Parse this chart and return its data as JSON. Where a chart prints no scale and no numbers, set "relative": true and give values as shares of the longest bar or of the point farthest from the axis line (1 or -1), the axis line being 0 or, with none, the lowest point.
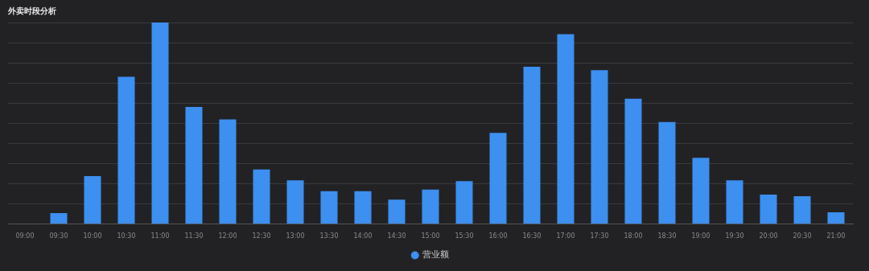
{
  "chart_data": {
    "type": "bar",
    "title": "外卖时段分析",
    "relative": true,
    "grid": "y",
    "legend": "bottom",
    "categories": [
      "09:00",
      "09:30",
      "10:00",
      "10:30",
      "11:00",
      "11:30",
      "12:00",
      "12:30",
      "13:00",
      "13:30",
      "14:00",
      "14:30",
      "15:00",
      "15:30",
      "16:00",
      "16:30",
      "17:00",
      "17:30",
      "18:00",
      "18:30",
      "19:00",
      "19:30",
      "20:00",
      "20:30",
      "21:00"
    ],
    "series": [
      {
        "name": "营业额",
        "color": "#3d8ff0",
        "values": [
          0,
          0.054,
          0.237,
          0.73,
          1,
          0.581,
          0.519,
          0.27,
          0.216,
          0.162,
          0.162,
          0.12,
          0.17,
          0.212,
          0.452,
          0.78,
          0.942,
          0.763,
          0.622,
          0.506,
          0.328,
          0.216,
          0.145,
          0.137,
          0.058
        ]
      }
    ]
  }
}
